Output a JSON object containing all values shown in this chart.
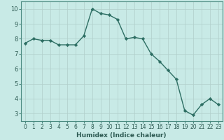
{
  "x": [
    0,
    1,
    2,
    3,
    4,
    5,
    6,
    7,
    8,
    9,
    10,
    11,
    12,
    13,
    14,
    15,
    16,
    17,
    18,
    19,
    20,
    21,
    22,
    23
  ],
  "y": [
    7.7,
    8.0,
    7.9,
    7.9,
    7.6,
    7.6,
    7.6,
    8.2,
    10.0,
    9.7,
    9.6,
    9.3,
    8.0,
    8.1,
    8.0,
    7.0,
    6.5,
    5.9,
    5.3,
    3.2,
    2.9,
    3.6,
    4.0,
    3.6
  ],
  "xlabel": "Humidex (Indice chaleur)",
  "xlim": [
    -0.5,
    23.5
  ],
  "ylim": [
    2.5,
    10.5
  ],
  "yticks": [
    3,
    4,
    5,
    6,
    7,
    8,
    9,
    10
  ],
  "xticks": [
    0,
    1,
    2,
    3,
    4,
    5,
    6,
    7,
    8,
    9,
    10,
    11,
    12,
    13,
    14,
    15,
    16,
    17,
    18,
    19,
    20,
    21,
    22,
    23
  ],
  "line_color": "#2d6e63",
  "marker_color": "#2d6e63",
  "bg_color": "#c8eae6",
  "grid_color": "#b0ceca",
  "axis_border_color": "#4a8a80",
  "tick_label_color": "#2d5a52",
  "xlabel_color": "#2d5a52",
  "xlabel_fontsize": 6.5,
  "tick_fontsize": 5.5,
  "linewidth": 1.0,
  "markersize": 2.2
}
